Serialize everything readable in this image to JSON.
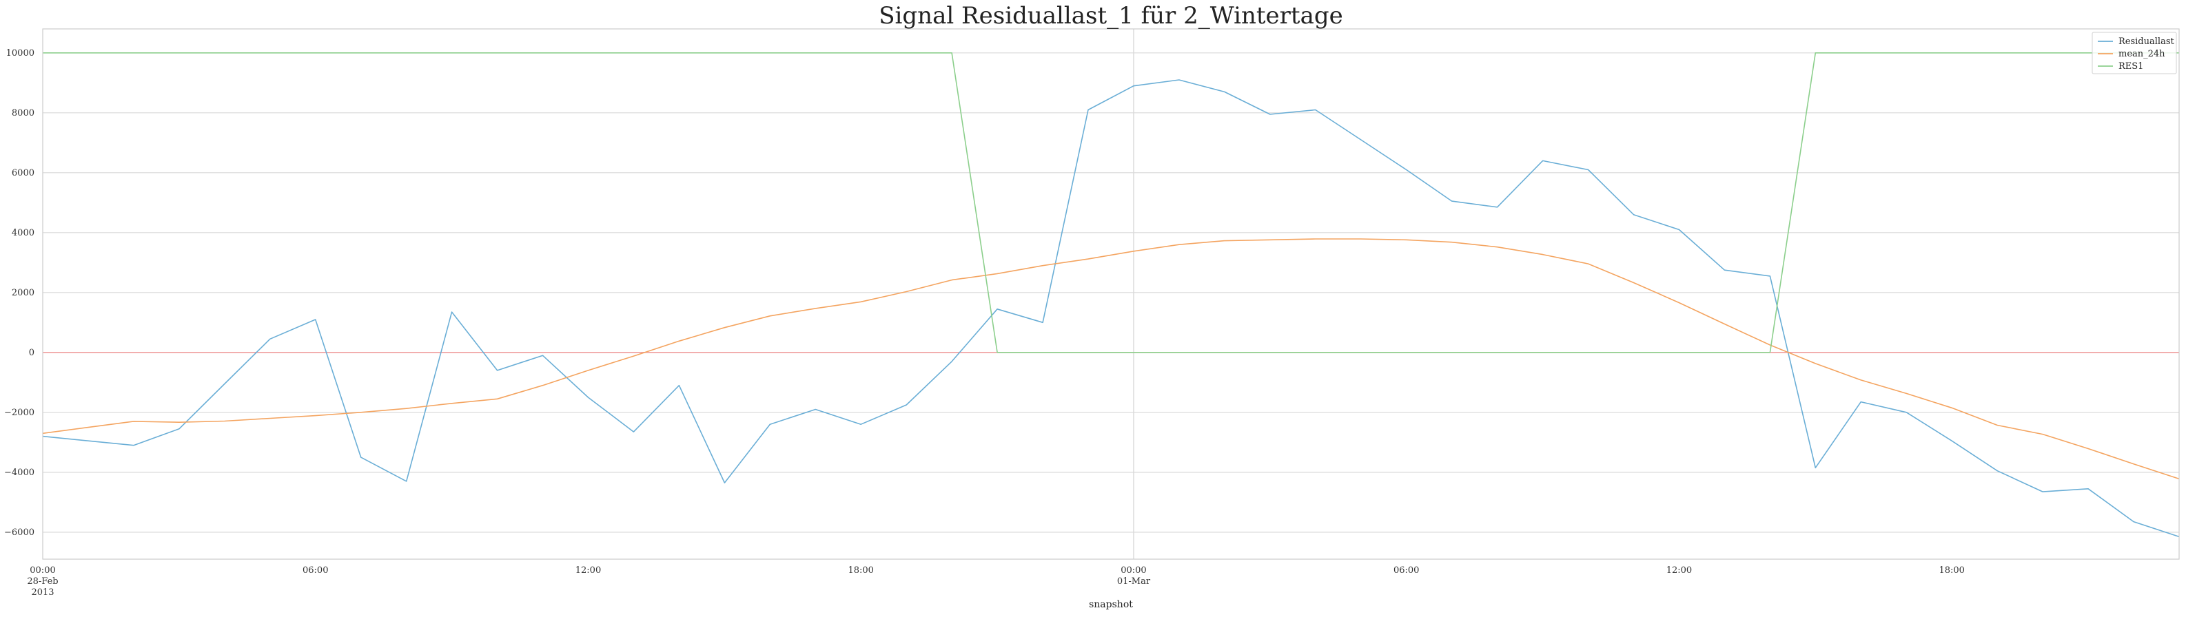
{
  "chart_data": {
    "type": "line",
    "title": "Signal Residuallast_1 für 2_Wintertage",
    "xlabel": "snapshot",
    "ylabel": "",
    "x_hours": [
      0,
      1,
      2,
      3,
      4,
      5,
      6,
      7,
      8,
      9,
      10,
      11,
      12,
      13,
      14,
      15,
      16,
      17,
      18,
      19,
      20,
      21,
      22,
      23,
      24,
      25,
      26,
      27,
      28,
      29,
      30,
      31,
      32,
      33,
      34,
      35,
      36,
      37,
      38,
      39,
      40,
      41,
      42,
      43,
      44,
      45,
      46,
      47
    ],
    "ylim": [
      -6900,
      10800
    ],
    "xlim": [
      0,
      47
    ],
    "yticks": [
      -6000,
      -4000,
      -2000,
      0,
      2000,
      4000,
      6000,
      8000,
      10000
    ],
    "ytick_labels": [
      "−6000",
      "−4000",
      "−2000",
      "0",
      "2000",
      "4000",
      "6000",
      "8000",
      "10000"
    ],
    "xticks": [
      {
        "hour": 0,
        "lines": [
          "00:00",
          "28-Feb",
          "2013"
        ]
      },
      {
        "hour": 6,
        "lines": [
          "06:00"
        ]
      },
      {
        "hour": 12,
        "lines": [
          "12:00"
        ]
      },
      {
        "hour": 18,
        "lines": [
          "18:00"
        ]
      },
      {
        "hour": 24,
        "lines": [
          "00:00",
          "01-Mar"
        ]
      },
      {
        "hour": 30,
        "lines": [
          "06:00"
        ]
      },
      {
        "hour": 36,
        "lines": [
          "12:00"
        ]
      },
      {
        "hour": 42,
        "lines": [
          "18:00"
        ]
      }
    ],
    "zero_line_color": "#f0a0a0",
    "day_boundary_hour": 24,
    "grid": true,
    "legend_position": "top-right",
    "series": [
      {
        "name": "Residuallast",
        "color": "#6aaed6",
        "values": [
          -2800,
          -2950,
          -3100,
          -2550,
          -1050,
          450,
          1100,
          -3500,
          -4300,
          1350,
          -600,
          -100,
          -1500,
          -2650,
          -1100,
          -4350,
          -2400,
          -1900,
          -2400,
          -1750,
          -300,
          1450,
          1000,
          8100,
          8900,
          9100,
          8700,
          7950,
          8100,
          7100,
          6100,
          5050,
          4850,
          6400,
          6100,
          4600,
          4100,
          2750,
          2550,
          -3850,
          -1650,
          -2000,
          -2950,
          -3950,
          -4650,
          -4550,
          -5650,
          -6150
        ]
      },
      {
        "name": "mean_24h",
        "color": "#f4a460",
        "values": [
          -2700,
          -2500,
          -2300,
          -2330,
          -2290,
          -2200,
          -2110,
          -2000,
          -1870,
          -1700,
          -1550,
          -1100,
          -600,
          -120,
          380,
          830,
          1220,
          1470,
          1690,
          2030,
          2420,
          2630,
          2900,
          3120,
          3380,
          3600,
          3730,
          3760,
          3790,
          3790,
          3760,
          3680,
          3520,
          3270,
          2960,
          2330,
          1660,
          950,
          250,
          -370,
          -920,
          -1370,
          -1850,
          -2430,
          -2730,
          -3210,
          -3720,
          -4220
        ]
      },
      {
        "name": "RES1",
        "color": "#8ccf8c",
        "values": [
          10000,
          10000,
          10000,
          10000,
          10000,
          10000,
          10000,
          10000,
          10000,
          10000,
          10000,
          10000,
          10000,
          10000,
          10000,
          10000,
          10000,
          10000,
          10000,
          10000,
          10000,
          0,
          0,
          0,
          0,
          0,
          0,
          0,
          0,
          0,
          0,
          0,
          0,
          0,
          0,
          0,
          0,
          0,
          0,
          10000,
          10000,
          10000,
          10000,
          10000,
          10000,
          10000,
          10000,
          10000
        ]
      }
    ]
  }
}
